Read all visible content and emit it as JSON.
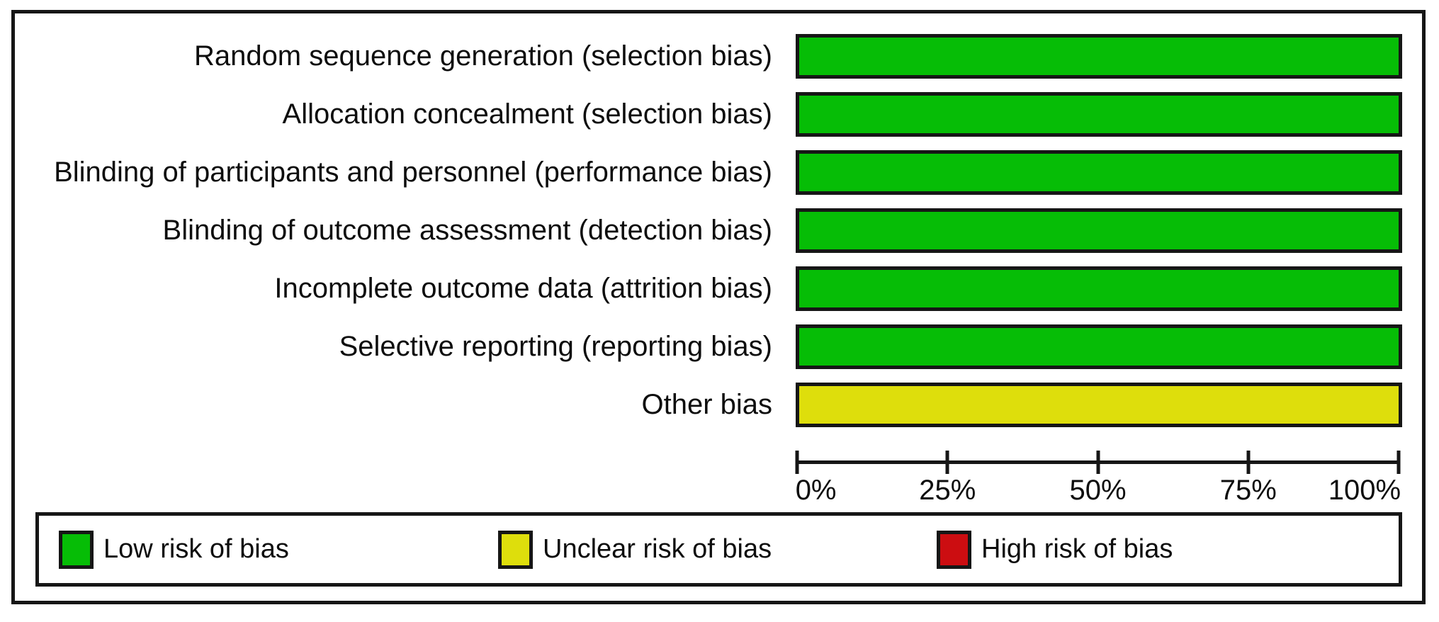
{
  "chart_data": {
    "type": "bar",
    "orientation": "horizontal",
    "stacked": true,
    "title": "",
    "xlabel": "",
    "ylabel": "",
    "xlim": [
      0,
      100
    ],
    "x_tick_labels": [
      "0%",
      "25%",
      "50%",
      "75%",
      "100%"
    ],
    "grid": false,
    "legend_position": "bottom",
    "categories": [
      "Random sequence generation (selection bias)",
      "Allocation concealment (selection bias)",
      "Blinding of participants and personnel (performance bias)",
      "Blinding of outcome assessment (detection bias)",
      "Incomplete outcome data (attrition bias)",
      "Selective reporting (reporting bias)",
      "Other bias"
    ],
    "series": [
      {
        "name": "Low risk of bias",
        "color": "#06BD06",
        "values": [
          100,
          100,
          100,
          100,
          100,
          100,
          0
        ]
      },
      {
        "name": "Unclear risk of bias",
        "color": "#DEDE0C",
        "values": [
          0,
          0,
          0,
          0,
          0,
          0,
          100
        ]
      },
      {
        "name": "High risk of bias",
        "color": "#CC0D11",
        "values": [
          0,
          0,
          0,
          0,
          0,
          0,
          0
        ]
      }
    ]
  },
  "colors": {
    "bar_border": "#161616",
    "frame_border": "#161616",
    "text": "#0d0d0d",
    "background": "#ffffff"
  }
}
